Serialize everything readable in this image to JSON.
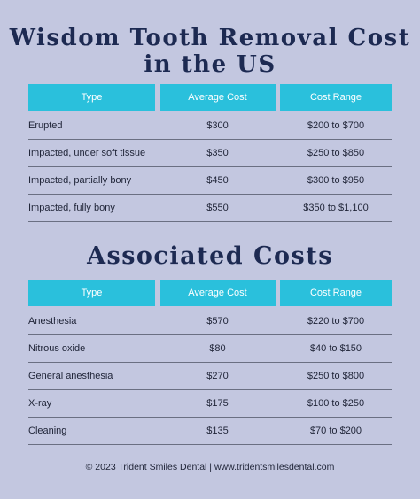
{
  "title_line1": "Wisdom Tooth Removal Cost",
  "title_line2": "in the US",
  "removal_table": {
    "headers": [
      "Type",
      "Average Cost",
      "Cost Range"
    ],
    "rows": [
      {
        "type": "Erupted",
        "average": "$300",
        "range": "$200 to $700"
      },
      {
        "type": "Impacted, under soft tissue",
        "average": "$350",
        "range": "$250 to $850"
      },
      {
        "type": "Impacted, partially bony",
        "average": "$450",
        "range": "$300 to $950"
      },
      {
        "type": "Impacted, fully bony",
        "average": "$550",
        "range": "$350 to $1,100"
      }
    ]
  },
  "associated_title": "Associated Costs",
  "associated_table": {
    "headers": [
      "Type",
      "Average Cost",
      "Cost Range"
    ],
    "rows": [
      {
        "type": "Anesthesia",
        "average": "$570",
        "range": "$220 to $700"
      },
      {
        "type": "Nitrous oxide",
        "average": "$80",
        "range": "$40 to $150"
      },
      {
        "type": "General anesthesia",
        "average": "$270",
        "range": "$250 to $800"
      },
      {
        "type": "X-ray",
        "average": "$175",
        "range": "$100 to $250"
      },
      {
        "type": "Cleaning",
        "average": "$135",
        "range": "$70 to $200"
      }
    ]
  },
  "footer": "© 2023 Trident Smiles Dental | www.tridentsmilesdental.com",
  "colors": {
    "background": "#c3c7e0",
    "title": "#1d2a52",
    "header_bg": "#2ac0dc",
    "header_text": "#ffffff",
    "row_text": "#1e2336",
    "divider": "#6a6f82"
  }
}
